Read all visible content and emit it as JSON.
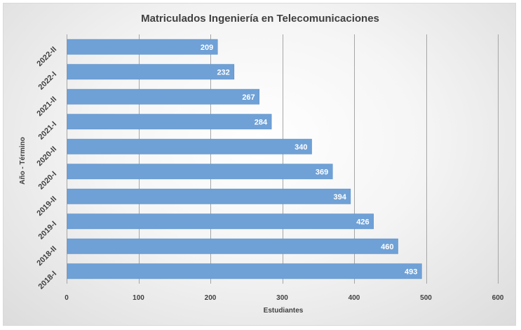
{
  "chart_data": {
    "type": "bar",
    "orientation": "horizontal",
    "title": "Matriculados Ingeniería en Telecomunicaciones",
    "xlabel": "Estudiantes",
    "ylabel": "Año - Término",
    "categories": [
      "2018-I",
      "2018-II",
      "2019-I",
      "2019-II",
      "2020-I",
      "2020-II",
      "2021-I",
      "2021-II",
      "2022-I",
      "2022-II"
    ],
    "values": [
      493,
      460,
      426,
      394,
      369,
      340,
      284,
      267,
      232,
      209
    ],
    "xlim": [
      0,
      600
    ],
    "xticks": [
      0,
      100,
      200,
      300,
      400,
      500,
      600
    ],
    "grid": true,
    "legend": "none",
    "data_labels": true,
    "colors": {
      "bar": "#6fa1d6",
      "bar_edge": "#5b8fc8",
      "label": "#ffffff",
      "text": "#404040",
      "grid": "#a6a6a6"
    }
  }
}
